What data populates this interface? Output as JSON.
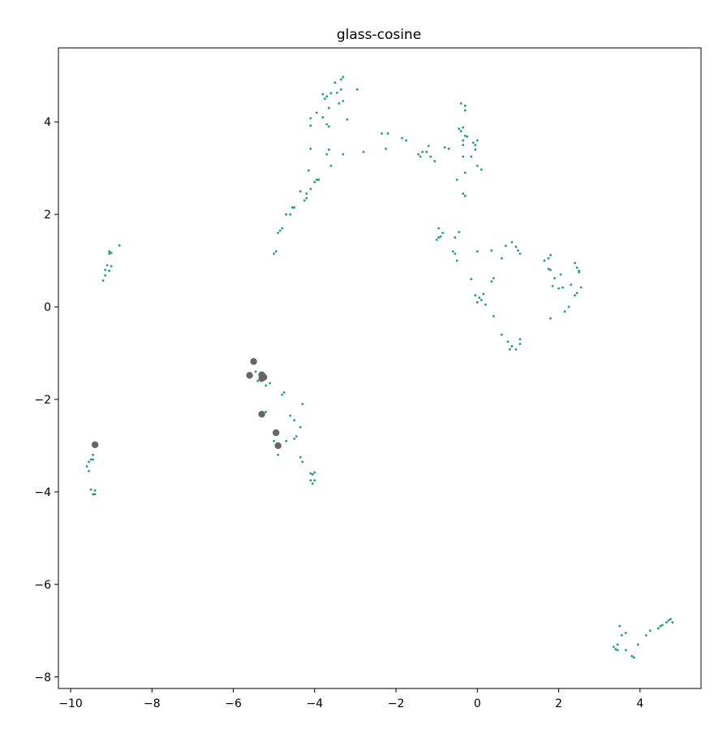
{
  "chart_data": {
    "type": "scatter",
    "title": "glass-cosine",
    "xlabel": "",
    "ylabel": "",
    "xlim": [
      -10.3,
      5.5
    ],
    "ylim": [
      -8.25,
      5.6
    ],
    "xticks": [
      -10,
      -8,
      -6,
      -4,
      -2,
      0,
      2,
      4
    ],
    "xtick_labels": [
      "−10",
      "−8",
      "−6",
      "−4",
      "−2",
      "0",
      "2",
      "4"
    ],
    "yticks": [
      -8,
      -6,
      -4,
      -2,
      0,
      2,
      4
    ],
    "ytick_labels": [
      "−8",
      "−6",
      "−4",
      "−2",
      "0",
      "2",
      "4"
    ],
    "grid": false,
    "series": [
      {
        "color": "#1b9e77",
        "marker_size": "small",
        "points": [
          [
            -8.8,
            1.33
          ],
          [
            -9.05,
            1.2
          ],
          [
            -9.0,
            1.17
          ],
          [
            -9.05,
            1.15
          ],
          [
            -9.1,
            0.9
          ],
          [
            -9.0,
            0.88
          ],
          [
            -9.15,
            0.8
          ],
          [
            -9.05,
            0.78
          ],
          [
            -9.15,
            0.68
          ],
          [
            -9.2,
            0.57
          ],
          [
            -9.6,
            -3.45
          ],
          [
            -9.55,
            -3.55
          ],
          [
            -9.5,
            -3.3
          ],
          [
            -9.45,
            -3.2
          ],
          [
            -9.45,
            -3.3
          ],
          [
            -9.55,
            -3.35
          ],
          [
            -9.5,
            -3.95
          ],
          [
            -9.4,
            -3.97
          ],
          [
            -9.45,
            -4.05
          ],
          [
            -9.4,
            -4.05
          ],
          [
            -5.45,
            -1.4
          ],
          [
            -5.4,
            -1.6
          ],
          [
            -5.3,
            -1.55
          ],
          [
            -5.2,
            -1.7
          ],
          [
            -5.1,
            -1.65
          ],
          [
            -5.2,
            -2.27
          ],
          [
            -4.75,
            -1.85
          ],
          [
            -4.8,
            -1.9
          ],
          [
            -4.6,
            -2.35
          ],
          [
            -4.5,
            -2.45
          ],
          [
            -4.3,
            -2.1
          ],
          [
            -4.35,
            -2.6
          ],
          [
            -4.45,
            -2.8
          ],
          [
            -4.5,
            -2.85
          ],
          [
            -4.9,
            -3.2
          ],
          [
            -4.7,
            -2.9
          ],
          [
            -4.85,
            -3.0
          ],
          [
            -5.0,
            -2.9
          ],
          [
            -4.35,
            -3.25
          ],
          [
            -4.3,
            -3.35
          ],
          [
            -4.1,
            -3.6
          ],
          [
            -4.05,
            -3.62
          ],
          [
            -4.0,
            -3.58
          ],
          [
            -4.1,
            -3.75
          ],
          [
            -4.05,
            -3.82
          ],
          [
            -4.0,
            -3.75
          ],
          [
            -5.0,
            1.15
          ],
          [
            -4.95,
            1.2
          ],
          [
            -4.9,
            1.6
          ],
          [
            -4.85,
            1.65
          ],
          [
            -4.8,
            1.7
          ],
          [
            -4.7,
            2.0
          ],
          [
            -4.6,
            2.0
          ],
          [
            -4.55,
            2.15
          ],
          [
            -4.5,
            2.15
          ],
          [
            -4.35,
            2.5
          ],
          [
            -4.25,
            2.3
          ],
          [
            -4.2,
            2.35
          ],
          [
            -4.2,
            2.45
          ],
          [
            -4.1,
            2.55
          ],
          [
            -4.0,
            2.7
          ],
          [
            -3.95,
            2.75
          ],
          [
            -3.9,
            2.75
          ],
          [
            -4.15,
            2.95
          ],
          [
            -4.1,
            3.42
          ],
          [
            -4.1,
            3.92
          ],
          [
            -4.1,
            4.08
          ],
          [
            -3.95,
            4.2
          ],
          [
            -3.8,
            4.6
          ],
          [
            -3.7,
            4.55
          ],
          [
            -3.6,
            4.62
          ],
          [
            -3.75,
            4.5
          ],
          [
            -3.65,
            4.3
          ],
          [
            -3.8,
            4.1
          ],
          [
            -3.7,
            3.95
          ],
          [
            -3.65,
            3.9
          ],
          [
            -3.4,
            4.4
          ],
          [
            -3.5,
            4.85
          ],
          [
            -3.35,
            4.92
          ],
          [
            -3.3,
            4.97
          ],
          [
            -3.35,
            4.7
          ],
          [
            -3.45,
            4.63
          ],
          [
            -3.3,
            4.45
          ],
          [
            -3.2,
            4.05
          ],
          [
            -2.95,
            4.7
          ],
          [
            -3.7,
            3.3
          ],
          [
            -3.65,
            3.4
          ],
          [
            -3.6,
            3.05
          ],
          [
            -3.3,
            3.3
          ],
          [
            -2.8,
            3.35
          ],
          [
            -2.35,
            3.75
          ],
          [
            -2.2,
            3.75
          ],
          [
            -2.25,
            3.42
          ],
          [
            -1.85,
            3.65
          ],
          [
            -1.75,
            3.6
          ],
          [
            -1.45,
            3.3
          ],
          [
            -1.35,
            3.35
          ],
          [
            -1.4,
            3.25
          ],
          [
            -1.25,
            3.35
          ],
          [
            -1.2,
            3.48
          ],
          [
            -1.15,
            3.25
          ],
          [
            -1.05,
            3.15
          ],
          [
            -0.8,
            3.45
          ],
          [
            -0.7,
            3.42
          ],
          [
            -0.4,
            4.4
          ],
          [
            -0.3,
            4.35
          ],
          [
            -0.3,
            4.25
          ],
          [
            -0.45,
            3.85
          ],
          [
            -0.35,
            3.88
          ],
          [
            -0.4,
            3.8
          ],
          [
            -0.35,
            3.6
          ],
          [
            -0.3,
            3.7
          ],
          [
            -0.25,
            3.68
          ],
          [
            -0.35,
            3.5
          ],
          [
            -0.1,
            3.55
          ],
          [
            -0.05,
            3.5
          ],
          [
            0.0,
            3.6
          ],
          [
            -0.05,
            3.4
          ],
          [
            -0.15,
            3.25
          ],
          [
            -0.35,
            3.25
          ],
          [
            0.0,
            3.05
          ],
          [
            0.1,
            2.97
          ],
          [
            -0.5,
            2.75
          ],
          [
            -0.3,
            2.9
          ],
          [
            -0.35,
            2.45
          ],
          [
            -0.3,
            2.4
          ],
          [
            -0.95,
            1.7
          ],
          [
            -0.85,
            1.6
          ],
          [
            -0.95,
            1.5
          ],
          [
            -1.0,
            1.45
          ],
          [
            -0.9,
            1.52
          ],
          [
            -0.55,
            1.5
          ],
          [
            -0.45,
            1.62
          ],
          [
            -0.6,
            1.2
          ],
          [
            -0.55,
            1.15
          ],
          [
            -0.5,
            1.0
          ],
          [
            0.0,
            1.2
          ],
          [
            0.35,
            1.22
          ],
          [
            0.6,
            1.05
          ],
          [
            0.7,
            1.32
          ],
          [
            0.85,
            1.4
          ],
          [
            0.95,
            1.3
          ],
          [
            1.0,
            1.22
          ],
          [
            1.05,
            1.15
          ],
          [
            0.4,
            0.62
          ],
          [
            0.35,
            0.55
          ],
          [
            -0.15,
            0.6
          ],
          [
            -0.05,
            0.25
          ],
          [
            0.0,
            0.1
          ],
          [
            0.05,
            0.2
          ],
          [
            0.1,
            0.15
          ],
          [
            0.15,
            0.28
          ],
          [
            0.2,
            0.05
          ],
          [
            0.4,
            -0.2
          ],
          [
            0.6,
            -0.6
          ],
          [
            0.75,
            -0.75
          ],
          [
            0.8,
            -0.92
          ],
          [
            0.85,
            -0.85
          ],
          [
            0.95,
            -0.92
          ],
          [
            1.05,
            -0.8
          ],
          [
            1.05,
            -0.7
          ],
          [
            1.65,
            1.0
          ],
          [
            1.75,
            1.05
          ],
          [
            1.8,
            1.12
          ],
          [
            1.75,
            0.82
          ],
          [
            1.8,
            0.8
          ],
          [
            1.9,
            0.62
          ],
          [
            2.05,
            0.7
          ],
          [
            2.1,
            0.42
          ],
          [
            2.0,
            0.4
          ],
          [
            1.85,
            0.45
          ],
          [
            1.8,
            -0.25
          ],
          [
            2.15,
            -0.1
          ],
          [
            2.25,
            0.0
          ],
          [
            2.3,
            0.48
          ],
          [
            2.4,
            0.95
          ],
          [
            2.45,
            0.85
          ],
          [
            2.5,
            0.78
          ],
          [
            2.5,
            0.75
          ],
          [
            2.55,
            0.42
          ],
          [
            2.45,
            0.3
          ],
          [
            2.4,
            0.25
          ],
          [
            3.35,
            -7.35
          ],
          [
            3.4,
            -7.4
          ],
          [
            3.45,
            -7.42
          ],
          [
            3.45,
            -7.3
          ],
          [
            3.5,
            -6.9
          ],
          [
            3.55,
            -7.1
          ],
          [
            3.65,
            -7.05
          ],
          [
            3.65,
            -7.42
          ],
          [
            3.8,
            -7.55
          ],
          [
            3.85,
            -7.58
          ],
          [
            3.95,
            -7.3
          ],
          [
            4.15,
            -7.1
          ],
          [
            4.25,
            -7.0
          ],
          [
            4.45,
            -6.95
          ],
          [
            4.5,
            -6.9
          ],
          [
            4.55,
            -6.88
          ],
          [
            4.65,
            -6.82
          ],
          [
            4.7,
            -6.78
          ],
          [
            4.75,
            -6.75
          ],
          [
            4.8,
            -6.82
          ]
        ]
      },
      {
        "color": "#666666",
        "marker_size": "large",
        "points": [
          [
            -5.5,
            -1.18
          ],
          [
            -5.6,
            -1.48
          ],
          [
            -5.3,
            -1.47
          ],
          [
            -5.25,
            -1.52
          ],
          [
            -5.3,
            -1.55
          ],
          [
            -5.3,
            -2.32
          ],
          [
            -4.95,
            -2.72
          ],
          [
            -4.9,
            -3.0
          ],
          [
            -9.4,
            -2.98
          ]
        ]
      }
    ]
  }
}
